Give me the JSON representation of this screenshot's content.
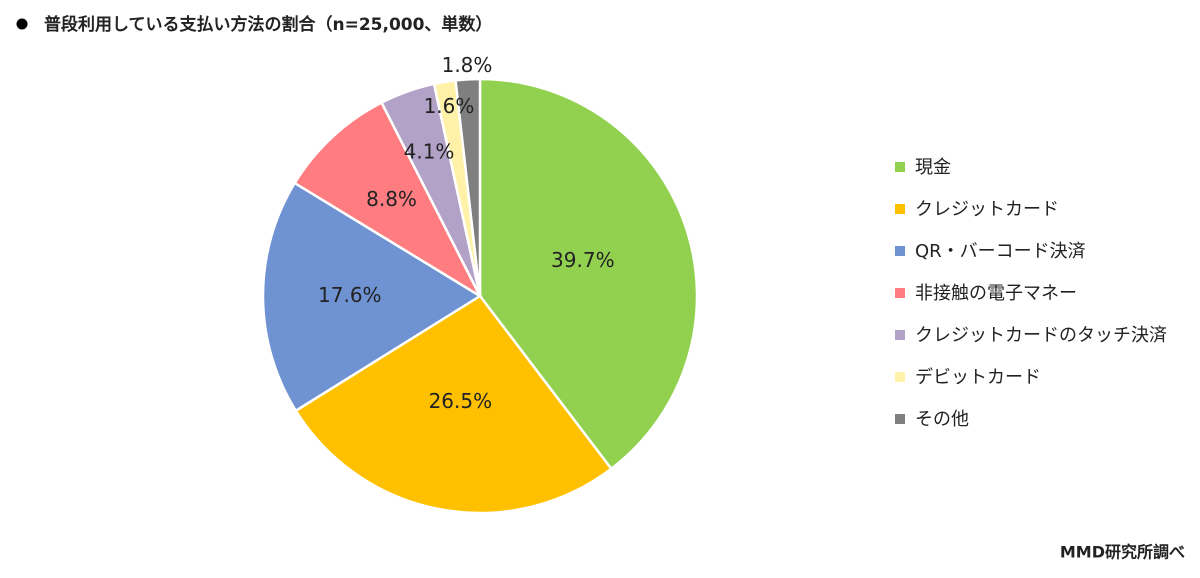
{
  "chart_data": {
    "type": "pie",
    "title": "普段利用している支払い方法の割合（n=25,000、単数）",
    "categories": [
      "現金",
      "クレジットカード",
      "QR・バーコード決済",
      "非接触の電子マネー",
      "クレジットカードのタッチ決済",
      "デビットカード",
      "その他"
    ],
    "values": [
      39.7,
      26.5,
      17.6,
      8.8,
      4.1,
      1.6,
      1.8
    ],
    "value_labels": [
      "39.7%",
      "26.5%",
      "17.6%",
      "8.8%",
      "4.1%",
      "1.6%",
      "1.8%"
    ],
    "colors": [
      "#92d050",
      "#ffc000",
      "#6f92d2",
      "#ff7c80",
      "#b3a2c7",
      "#fff2a8",
      "#7f7f7f"
    ],
    "legend": "right",
    "source": "MMD研究所調べ"
  }
}
